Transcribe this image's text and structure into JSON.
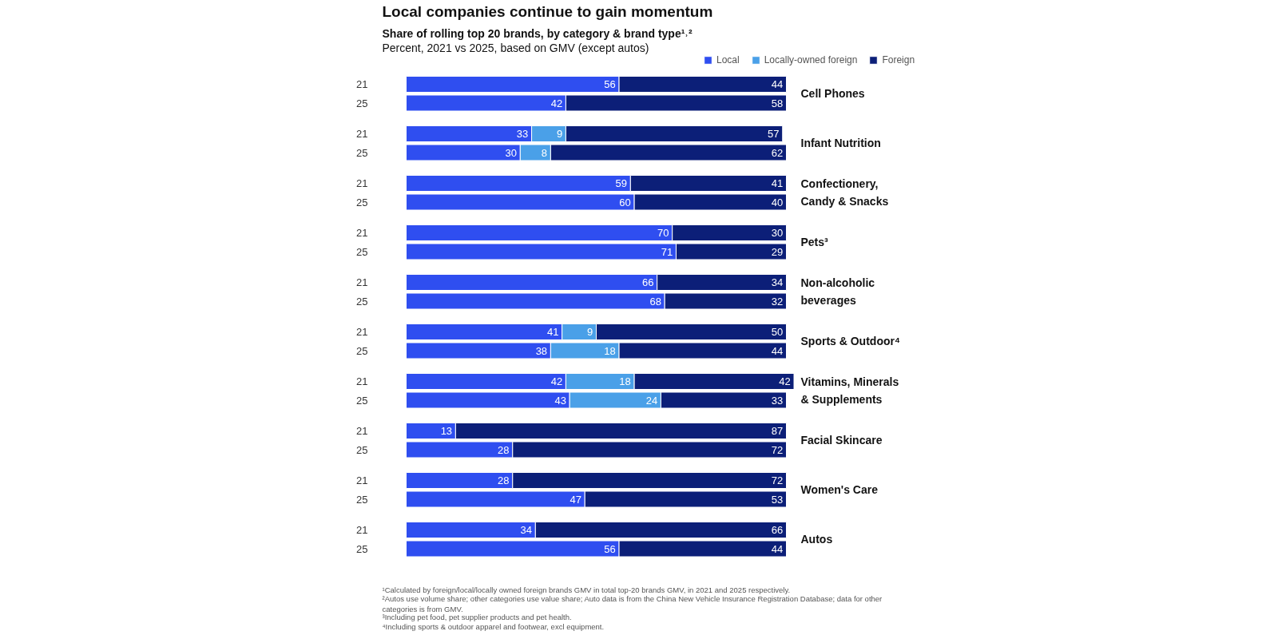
{
  "chart_data": {
    "type": "bar",
    "orientation": "horizontal",
    "stacked": true,
    "data_labels": true,
    "tick_labels": "y",
    "legend": "top right",
    "grid": false,
    "title": "Local companies continue to gain momentum",
    "subtitle": "Share of rolling top 20 brands, by category & brand type¹˒²\nPercent, 2021 vs 2025, based on GMV (except autos)",
    "categories": [
      "21",
      "25",
      "21",
      "25",
      "21",
      "25",
      "21",
      "25",
      "21",
      "25",
      "21",
      "25",
      "21",
      "25",
      "21",
      "25",
      "21",
      "25",
      "21",
      "25"
    ],
    "series": [
      {
        "name": "Local",
        "color": "#2f4ef0",
        "values": [
          56,
          42,
          33,
          30,
          59,
          60,
          70,
          71,
          66,
          68,
          41,
          38,
          42,
          43,
          13,
          28,
          28,
          47,
          34,
          56
        ]
      },
      {
        "name": "Locally-owned foreign",
        "color": "#4aa0e8",
        "values": [
          null,
          null,
          9,
          8,
          null,
          null,
          null,
          null,
          null,
          null,
          9,
          18,
          18,
          24,
          null,
          null,
          null,
          null,
          null,
          null
        ]
      },
      {
        "name": "Foreign",
        "color": "#0c1f78",
        "values": [
          44,
          58,
          57,
          62,
          41,
          40,
          30,
          29,
          34,
          32,
          50,
          44,
          42,
          33,
          87,
          72,
          72,
          53,
          66,
          44
        ]
      }
    ],
    "annotations": [
      "Cell Phones",
      "Infant Nutrition",
      "Confectionery,\nCandy & Snacks",
      "Pets³",
      "Non-alcoholic\nbeverages",
      "Sports & Outdoor⁴",
      "Vitamins, Minerals\n& Supplements",
      "Facial Skincare",
      "Women's Care",
      "Autos",
      "¹Calculated by foreign/local/locally owned foreign brands GMV in total top-20 brands GMV, in 2021 and 2025 respectively.",
      "²Autos use volume share; other categories use value share; Auto data is from the China New Vehicle Insurance Registration Database; data for other\n categories is from GMV.",
      "³Including pet food, pet supplier products and pet health.",
      "⁴Including sports & outdoor apparel and footwear, excl equipment."
    ]
  }
}
